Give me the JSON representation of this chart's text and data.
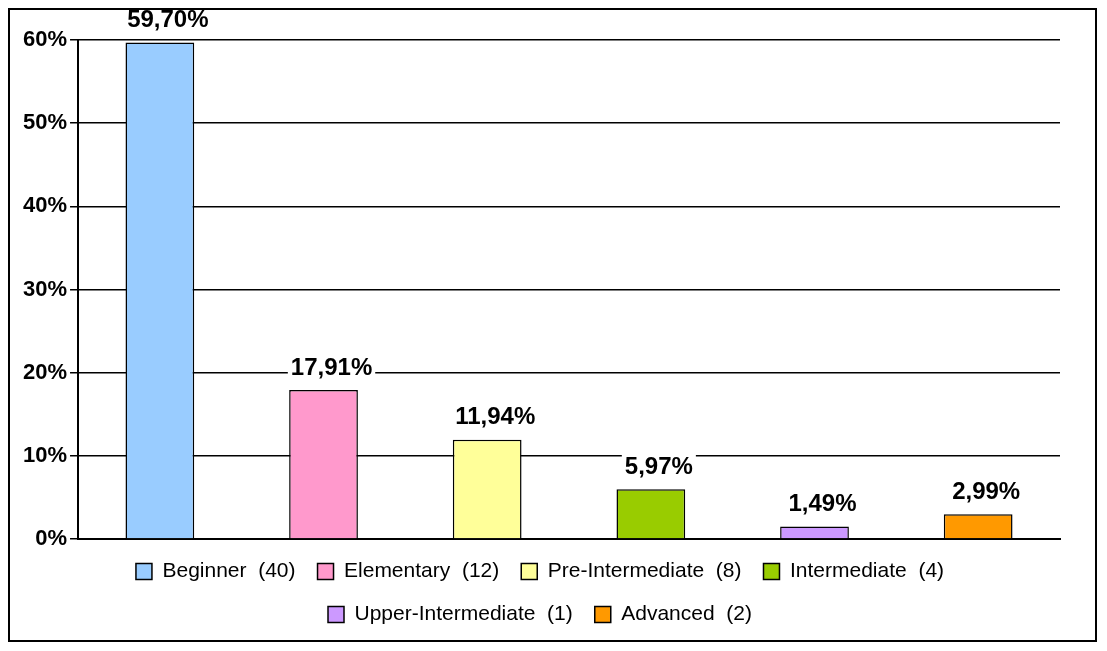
{
  "chart_data": {
    "type": "bar",
    "categories": [
      null,
      null,
      null,
      null,
      null,
      null
    ],
    "series": [
      {
        "name": "Beginner  (40)",
        "color": "#99ccff",
        "values": [
          59.7,
          null,
          null,
          null,
          null,
          null
        ],
        "value_labels": [
          "59,70%",
          null,
          null,
          null,
          null,
          null
        ]
      },
      {
        "name": "Elementary  (12)",
        "color": "#ff99cc",
        "values": [
          null,
          17.91,
          null,
          null,
          null,
          null
        ],
        "value_labels": [
          null,
          "17,91%",
          null,
          null,
          null,
          null
        ]
      },
      {
        "name": "Pre-Intermediate  (8)",
        "color": "#ffff99",
        "values": [
          null,
          null,
          11.94,
          null,
          null,
          null
        ],
        "value_labels": [
          null,
          null,
          "11,94%",
          null,
          null,
          null
        ]
      },
      {
        "name": "Intermediate  (4)",
        "color": "#99cc00",
        "values": [
          null,
          null,
          null,
          5.97,
          null,
          null
        ],
        "value_labels": [
          null,
          null,
          null,
          "5,97%",
          null,
          null
        ]
      },
      {
        "name": "Upper-Intermediate  (1)",
        "color": "#cc99ff",
        "values": [
          null,
          null,
          null,
          null,
          1.49,
          null
        ],
        "value_labels": [
          null,
          null,
          null,
          null,
          "1,49%",
          null
        ]
      },
      {
        "name": "Advanced  (2)",
        "color": "#ff9900",
        "values": [
          null,
          null,
          null,
          null,
          null,
          2.99
        ],
        "value_labels": [
          null,
          null,
          null,
          null,
          null,
          "2,99%"
        ]
      }
    ],
    "ylim": [
      0,
      60
    ],
    "yticks": [
      {
        "value": 0,
        "label": "0%"
      },
      {
        "value": 10,
        "label": "10%"
      },
      {
        "value": 20,
        "label": "20%"
      },
      {
        "value": 30,
        "label": "30%"
      },
      {
        "value": 40,
        "label": "40%"
      },
      {
        "value": 50,
        "label": "50%"
      },
      {
        "value": 60,
        "label": "60%"
      }
    ],
    "grid": "y",
    "legend": "bottom",
    "tick_labels": "y"
  }
}
